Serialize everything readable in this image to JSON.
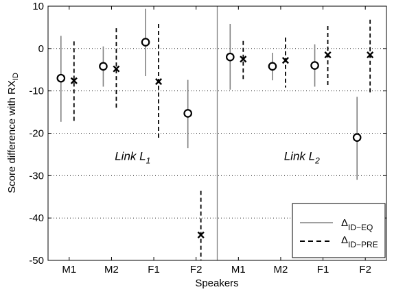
{
  "chart_data": {
    "type": "scatter",
    "subtype": "error-bar comparison, two panels",
    "xlabel": "Speakers",
    "ylabel_main": "Score difference with RX",
    "ylabel_sub": "ID",
    "ylim": [
      -50,
      10
    ],
    "yticks": [
      10,
      0,
      -10,
      -20,
      -30,
      -40,
      -50
    ],
    "categories": [
      "M1",
      "M2",
      "F1",
      "F2",
      "M1",
      "M2",
      "F1",
      "F2"
    ],
    "grid": true,
    "legend_position": "bottom-right",
    "panels": [
      {
        "name": "Link L",
        "sub": "1"
      },
      {
        "name": "Link L",
        "sub": "2"
      }
    ],
    "series": [
      {
        "key": "eq",
        "label_main": "Δ",
        "label_sub": "ID−EQ",
        "marker": "circle",
        "line_style": "solid",
        "color": "#808080",
        "mean": [
          -7,
          -4.2,
          1.5,
          -15.3,
          -2,
          -4.2,
          -4,
          -21
        ],
        "low": [
          -17.3,
          -9,
          -6.5,
          -23.5,
          -9.7,
          -7.5,
          -9,
          -31
        ],
        "high": [
          3,
          0.5,
          9.4,
          -7.4,
          5.8,
          -1,
          1,
          -11.4
        ]
      },
      {
        "key": "pre",
        "label_main": "Δ",
        "label_sub": "ID−PRE",
        "marker": "x",
        "line_style": "dashed",
        "color": "#000000",
        "mean": [
          -7.6,
          -4.8,
          -7.8,
          -44,
          -2.5,
          -2.8,
          -1.5,
          -1.5
        ],
        "low": [
          -17.3,
          -14.3,
          -21.5,
          -54,
          -7.2,
          -9.2,
          -9.2,
          -10.4
        ],
        "high": [
          1.7,
          4.8,
          5.8,
          -33.6,
          1.8,
          2.6,
          5.3,
          6.8
        ]
      }
    ]
  }
}
